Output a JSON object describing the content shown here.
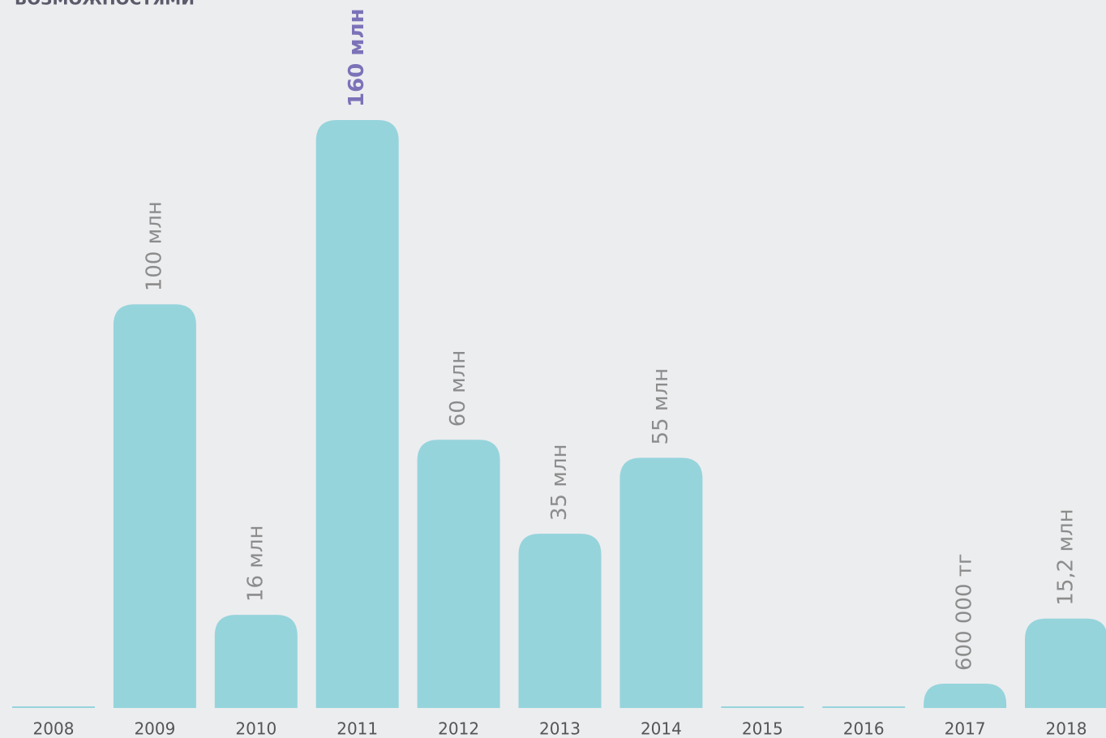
{
  "chart_data": {
    "type": "bar",
    "title": "ВОЗМОЖНОСТЯМИ",
    "categories": [
      "2008",
      "2009",
      "2010",
      "2011",
      "2012",
      "2013",
      "2014",
      "2015",
      "2016",
      "2017",
      "2018"
    ],
    "values": [
      null,
      100,
      16,
      160,
      60,
      35,
      55,
      null,
      null,
      0.6,
      15.2
    ],
    "value_labels": [
      null,
      "100 млн",
      "16 млн",
      "160 млн",
      "60 млн",
      "35 млн",
      "55 млн",
      null,
      null,
      "600 000 тг",
      "15,2 млн"
    ],
    "value_label_colors": [
      "#8c8c8c",
      "#8c8c8c",
      "#8c8c8c",
      "#7b73b8",
      "#8c8c8c",
      "#8c8c8c",
      "#8c8c8c",
      "#8c8c8c",
      "#8c8c8c",
      "#8c8c8c",
      "#8c8c8c"
    ],
    "color": "#96d4dc"
  }
}
